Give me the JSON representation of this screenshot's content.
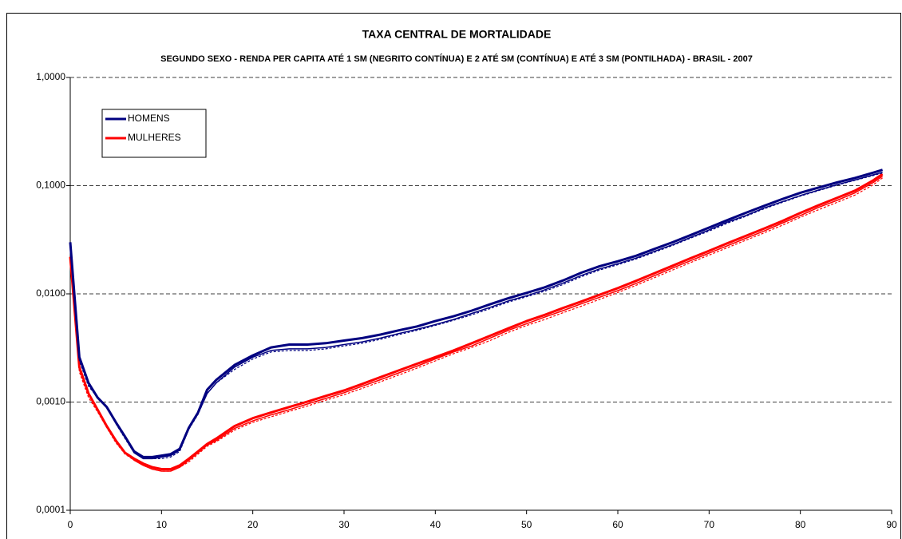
{
  "chart_data": {
    "type": "line",
    "title": "TAXA CENTRAL DE MORTALIDADE",
    "subtitle": "SEGUNDO SEXO - RENDA PER CAPITA ATÉ 1 SM (NEGRITO CONTÍNUA) E 2 ATÉ SM (CONTÍNUA) E ATÉ 3 SM (PONTILHADA) - BRASIL - 2007",
    "log_y": true,
    "grid": true,
    "legend": "upper left",
    "xlim": [
      0,
      90
    ],
    "xticks": [
      0,
      10,
      20,
      30,
      40,
      50,
      60,
      70,
      80,
      90
    ],
    "ylim": [
      0.0001,
      1
    ],
    "yticks": [
      {
        "value": 0.0001,
        "label": "0,0001"
      },
      {
        "value": 0.001,
        "label": "0,0010"
      },
      {
        "value": 0.01,
        "label": "0,0100"
      },
      {
        "value": 0.1,
        "label": "0,1000"
      },
      {
        "value": 1,
        "label": "1,0000"
      }
    ],
    "x": [
      0,
      1,
      2,
      3,
      4,
      5,
      6,
      7,
      8,
      9,
      10,
      11,
      12,
      13,
      14,
      15,
      16,
      18,
      20,
      22,
      24,
      26,
      28,
      30,
      32,
      34,
      36,
      38,
      40,
      42,
      44,
      46,
      48,
      50,
      52,
      54,
      56,
      58,
      60,
      62,
      64,
      66,
      68,
      70,
      72,
      74,
      76,
      78,
      80,
      82,
      84,
      86,
      88,
      89
    ],
    "series": [
      {
        "name": "HOMENS",
        "color": "#000080",
        "style": "bold",
        "values": [
          0.03,
          0.0026,
          0.0015,
          0.0011,
          0.0009,
          0.00065,
          0.00048,
          0.00035,
          0.00031,
          0.00031,
          0.00032,
          0.00033,
          0.00037,
          0.00058,
          0.0008,
          0.0013,
          0.0016,
          0.0022,
          0.0027,
          0.0032,
          0.0034,
          0.0034,
          0.0035,
          0.0037,
          0.0039,
          0.0042,
          0.0046,
          0.005,
          0.0056,
          0.0062,
          0.007,
          0.008,
          0.0091,
          0.0102,
          0.0115,
          0.0133,
          0.0157,
          0.018,
          0.02,
          0.0225,
          0.026,
          0.03,
          0.035,
          0.041,
          0.048,
          0.056,
          0.065,
          0.075,
          0.086,
          0.096,
          0.107,
          0.118,
          0.132,
          0.14
        ]
      },
      {
        "color": "#000080",
        "style": "solid",
        "values": [
          0.028,
          0.0025,
          0.0015,
          0.0011,
          0.0009,
          0.00064,
          0.00047,
          0.00034,
          0.0003,
          0.0003,
          0.00031,
          0.00032,
          0.00036,
          0.00057,
          0.00078,
          0.0012,
          0.0015,
          0.0021,
          0.0026,
          0.003,
          0.0031,
          0.0031,
          0.0032,
          0.0034,
          0.0036,
          0.0039,
          0.0043,
          0.0047,
          0.0052,
          0.0058,
          0.0066,
          0.0075,
          0.0086,
          0.0096,
          0.0109,
          0.0126,
          0.0148,
          0.017,
          0.019,
          0.0214,
          0.0247,
          0.0285,
          0.0333,
          0.039,
          0.046,
          0.053,
          0.062,
          0.071,
          0.081,
          0.091,
          0.102,
          0.113,
          0.126,
          0.133
        ]
      },
      {
        "color": "#000080",
        "style": "dotted",
        "values": [
          0.027,
          0.0024,
          0.0014,
          0.0011,
          0.0009,
          0.00063,
          0.00046,
          0.00034,
          0.0003,
          0.0003,
          0.0003,
          0.00031,
          0.00035,
          0.00056,
          0.00077,
          0.0012,
          0.0015,
          0.002,
          0.0025,
          0.0029,
          0.003,
          0.003,
          0.0031,
          0.0033,
          0.0035,
          0.0038,
          0.0042,
          0.0046,
          0.0051,
          0.0057,
          0.0064,
          0.0073,
          0.0084,
          0.0094,
          0.0106,
          0.0122,
          0.0144,
          0.0166,
          0.0186,
          0.021,
          0.0242,
          0.028,
          0.0328,
          0.038,
          0.045,
          0.052,
          0.061,
          0.07,
          0.08,
          0.09,
          0.101,
          0.112,
          0.124,
          0.131
        ]
      },
      {
        "name": "MULHERES",
        "color": "#ff0000",
        "style": "bold",
        "values": [
          0.022,
          0.0021,
          0.0012,
          0.00085,
          0.0006,
          0.00044,
          0.00034,
          0.0003,
          0.00027,
          0.00025,
          0.00024,
          0.00024,
          0.00026,
          0.0003,
          0.00035,
          0.00041,
          0.00046,
          0.0006,
          0.00071,
          0.0008,
          0.0009,
          0.00101,
          0.00114,
          0.00128,
          0.00147,
          0.0017,
          0.00196,
          0.00226,
          0.0026,
          0.003,
          0.0035,
          0.0041,
          0.0048,
          0.0056,
          0.0064,
          0.0074,
          0.0085,
          0.0098,
          0.0113,
          0.0132,
          0.0155,
          0.0182,
          0.0214,
          0.025,
          0.0293,
          0.0343,
          0.04,
          0.047,
          0.056,
          0.066,
          0.077,
          0.09,
          0.112,
          0.128
        ]
      },
      {
        "color": "#ff0000",
        "style": "solid",
        "values": [
          0.021,
          0.002,
          0.0012,
          0.00083,
          0.00059,
          0.00043,
          0.00034,
          0.00029,
          0.00026,
          0.00024,
          0.00023,
          0.00023,
          0.00025,
          0.00029,
          0.00034,
          0.0004,
          0.00044,
          0.00057,
          0.00067,
          0.00076,
          0.00085,
          0.00096,
          0.00108,
          0.00122,
          0.0014,
          0.00161,
          0.00186,
          0.00215,
          0.0025,
          0.0029,
          0.0033,
          0.0039,
          0.0046,
          0.0053,
          0.0061,
          0.007,
          0.0081,
          0.0093,
          0.0107,
          0.0125,
          0.0147,
          0.0173,
          0.0203,
          0.0238,
          0.0278,
          0.0326,
          0.038,
          0.045,
          0.053,
          0.063,
          0.073,
          0.086,
          0.107,
          0.122
        ]
      },
      {
        "color": "#ff0000",
        "style": "dotted",
        "values": [
          0.02,
          0.0019,
          0.0011,
          0.00081,
          0.00058,
          0.00042,
          0.00033,
          0.00029,
          0.00026,
          0.00024,
          0.00023,
          0.00023,
          0.00025,
          0.00028,
          0.00033,
          0.00039,
          0.00043,
          0.00055,
          0.00065,
          0.00073,
          0.00082,
          0.00092,
          0.00104,
          0.00117,
          0.00134,
          0.00154,
          0.00178,
          0.00206,
          0.0024,
          0.0028,
          0.0032,
          0.0037,
          0.0044,
          0.0051,
          0.0058,
          0.0067,
          0.0077,
          0.0089,
          0.0103,
          0.012,
          0.0141,
          0.0166,
          0.0195,
          0.0228,
          0.0267,
          0.0312,
          0.0365,
          0.043,
          0.051,
          0.06,
          0.07,
          0.082,
          0.102,
          0.118
        ]
      }
    ]
  }
}
